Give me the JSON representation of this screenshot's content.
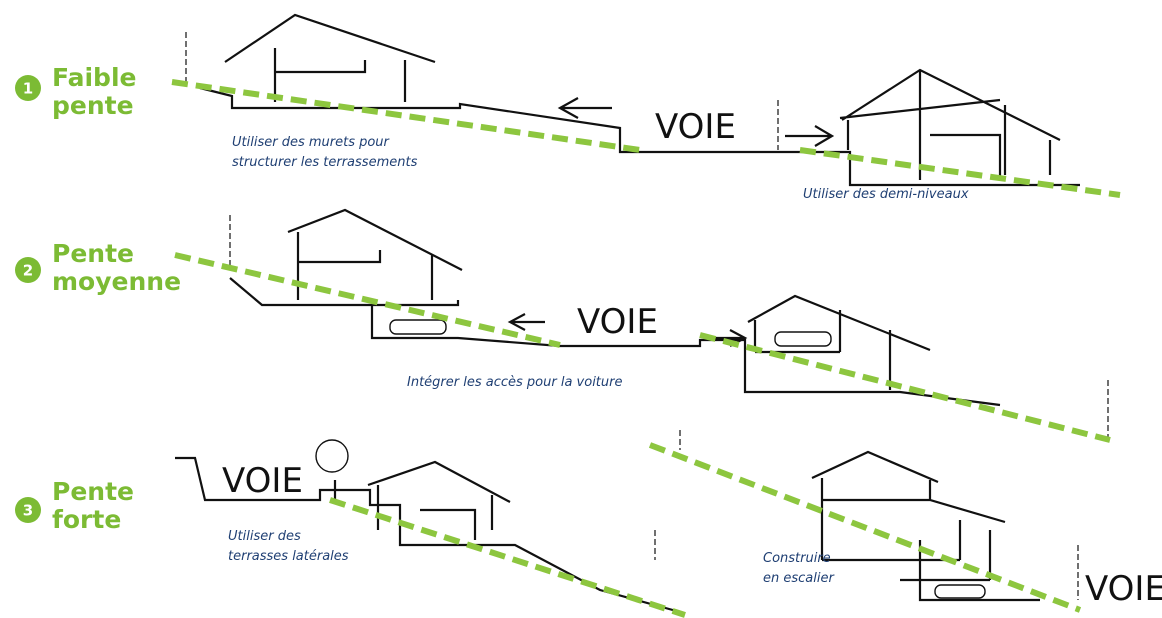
{
  "rows": [
    {
      "number": "1",
      "title": [
        "Faible",
        "pente"
      ],
      "roads": [
        "VOIE"
      ],
      "captions": [
        [
          "Utiliser des murets pour",
          "structurer les terrassements"
        ],
        [
          "Utiliser des demi-niveaux"
        ]
      ]
    },
    {
      "number": "2",
      "title": [
        "Pente",
        "moyenne"
      ],
      "roads": [
        "VOIE"
      ],
      "captions": [
        [
          "Intégrer les accès pour la voiture"
        ]
      ]
    },
    {
      "number": "3",
      "title": [
        "Pente",
        "forte"
      ],
      "roads": [
        "VOIE",
        "VOIE"
      ],
      "captions": [
        [
          "Utiliser des",
          "terrasses latérales"
        ],
        [
          "Construire",
          "en escalier"
        ]
      ]
    }
  ]
}
